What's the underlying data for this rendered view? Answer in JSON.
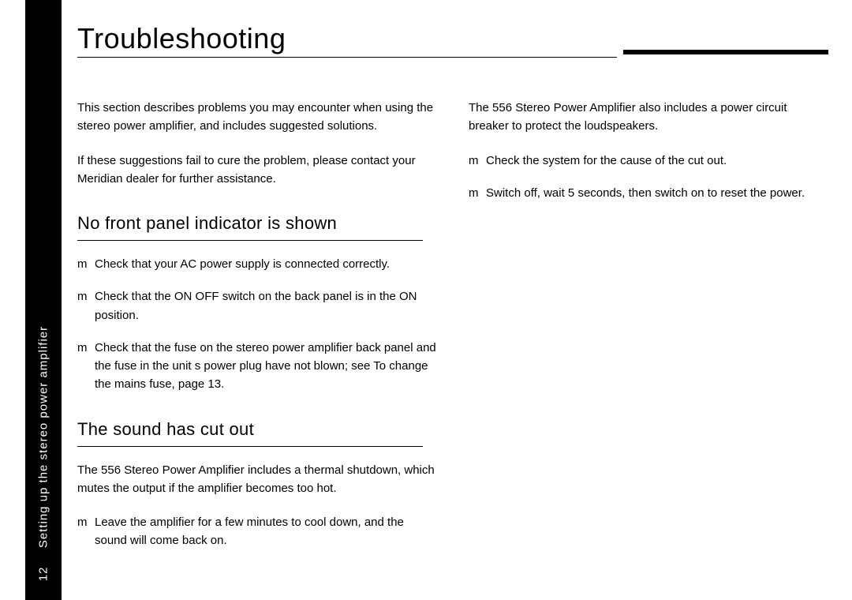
{
  "sidebar": {
    "page_number": "12",
    "section_label": "Setting up the stereo power amplifier"
  },
  "title": "Troubleshooting",
  "left": {
    "intro1": "This section describes problems you may encounter when using the stereo power amplifier, and includes suggested solutions.",
    "intro2": "If these suggestions fail to cure the problem, please contact your Meridian dealer for further assistance.",
    "sub1": "No front panel indicator is shown",
    "b1": "Check that your AC power supply is connected correctly.",
    "b2": "Check that the ON OFF switch on the back panel is in the ON position.",
    "b3": "Check that the fuse on the stereo power amplifier back panel and the fuse in the unit s power plug have not blown; see  To change the mains fuse, page 13.",
    "sub2": "The sound has cut out",
    "p1": "The 556 Stereo Power Amplifier includes a thermal shutdown, which mutes the output if the amplifier becomes too hot.",
    "b4": "Leave the amplifier for a few minutes to cool down, and the sound will come back on."
  },
  "right": {
    "p1": "The 556 Stereo Power Amplifier also includes a power circuit breaker to protect the loudspeakers.",
    "b1": "Check the system for the cause of the cut out.",
    "b2": "Switch off, wait 5 seconds, then switch on to reset the power."
  },
  "bullet_marker": "m"
}
